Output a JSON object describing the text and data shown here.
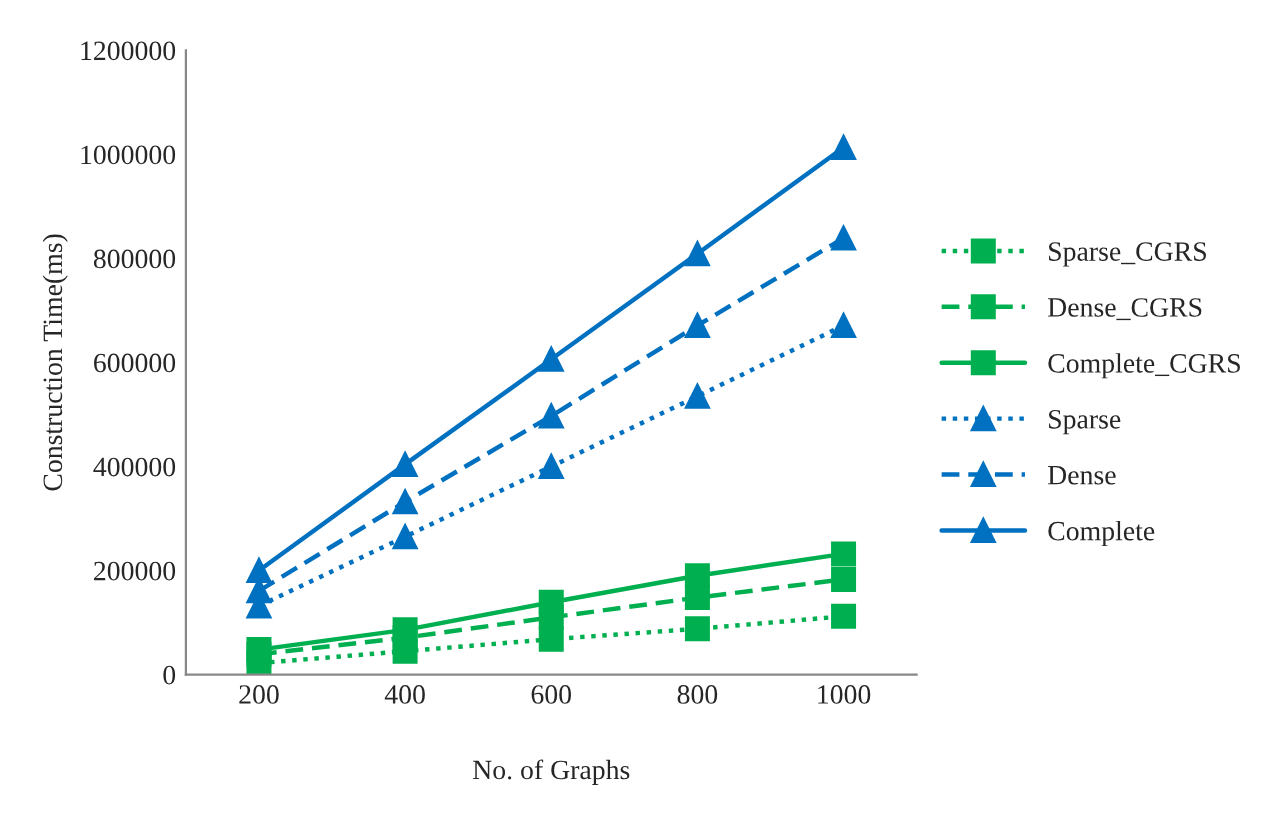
{
  "chart_data": {
    "type": "line",
    "xlabel": "No. of Graphs",
    "ylabel": "Construction Time(ms)",
    "x": [
      200,
      400,
      600,
      800,
      1000
    ],
    "xlim": [
      100,
      1100
    ],
    "xticks": [
      200,
      400,
      600,
      800,
      1000
    ],
    "ylim": [
      0,
      1200000
    ],
    "yticks": [
      0,
      200000,
      400000,
      600000,
      800000,
      1000000,
      1200000
    ],
    "grid": false,
    "legend": "right",
    "series": [
      {
        "name": "Sparse_CGRS",
        "color": "#00b050",
        "marker": "square",
        "line_style": "dotted",
        "values": [
          22000,
          45000,
          68000,
          88000,
          112000
        ]
      },
      {
        "name": "Dense_CGRS",
        "color": "#00b050",
        "marker": "square",
        "line_style": "dashed",
        "values": [
          39000,
          71000,
          110000,
          148000,
          183000
        ]
      },
      {
        "name": "Complete_CGRS",
        "color": "#00b050",
        "marker": "square",
        "line_style": "solid",
        "values": [
          48000,
          86000,
          139000,
          190000,
          232000
        ]
      },
      {
        "name": "Sparse",
        "color": "#0070c0",
        "marker": "triangle",
        "line_style": "dotted",
        "values": [
          132000,
          265000,
          400000,
          535000,
          671000
        ]
      },
      {
        "name": "Dense",
        "color": "#0070c0",
        "marker": "triangle",
        "line_style": "dashed",
        "values": [
          161000,
          332000,
          497000,
          671000,
          839000
        ]
      },
      {
        "name": "Complete",
        "color": "#0070c0",
        "marker": "triangle",
        "line_style": "solid",
        "values": [
          200000,
          404000,
          606000,
          809000,
          1013000
        ]
      }
    ]
  }
}
